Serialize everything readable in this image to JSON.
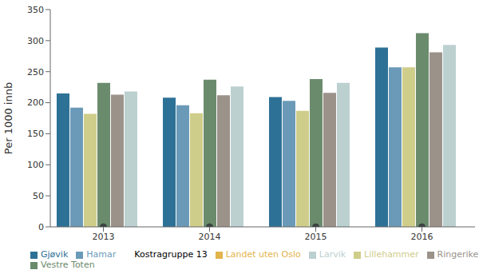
{
  "chart_data": {
    "type": "bar",
    "y_label": "Per 1000 innb",
    "categories": [
      "2013",
      "2014",
      "2015",
      "2016"
    ],
    "series": [
      {
        "name": "Gjøvik",
        "color": "#2e7196",
        "values": [
          215,
          208,
          209,
          289
        ]
      },
      {
        "name": "Hamar",
        "color": "#6b9ab8",
        "values": [
          192,
          196,
          203,
          257
        ]
      },
      {
        "name": "Lillehammer",
        "color": "#cfcd8a",
        "values": [
          182,
          183,
          187,
          257
        ]
      },
      {
        "name": "Vestre Toten",
        "color": "#6b8b6d",
        "values": [
          232,
          237,
          238,
          312
        ]
      },
      {
        "name": "Ringerike",
        "color": "#9b928a",
        "values": [
          213,
          212,
          216,
          281
        ]
      },
      {
        "name": "Larvik",
        "color": "#bcd0d0",
        "values": [
          218,
          226,
          232,
          293
        ]
      },
      {
        "name": "Landet uten Oslo",
        "color": "#e3b34c",
        "values": [
          0,
          0,
          0,
          0
        ]
      },
      {
        "name": "Kostragruppe 13",
        "color": "#3c4442",
        "type": "scatter",
        "marker": "circle",
        "values": [
          0,
          0,
          0,
          0
        ]
      }
    ],
    "ylim": [
      0,
      350
    ],
    "yticks": [
      0,
      50,
      100,
      150,
      200,
      250,
      300,
      350
    ],
    "grid": false,
    "legend": "bottom"
  }
}
